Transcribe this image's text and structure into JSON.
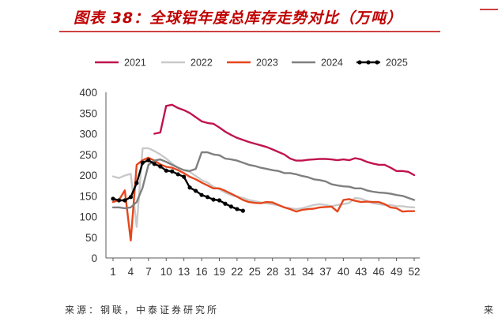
{
  "source": "来源：钢联，中泰证券研究所",
  "adjacent_panel_fragment": "来",
  "colors": {
    "title": "#C00000",
    "rule": "#C00000",
    "axis": "#595959"
  },
  "chart_data": {
    "type": "line",
    "title": "图表 38：全球铝年度总库存走势对比（万吨）",
    "xlabel": "",
    "ylabel": "",
    "xlim": [
      1,
      52
    ],
    "ylim": [
      0,
      400
    ],
    "xticks": [
      1,
      4,
      7,
      10,
      13,
      16,
      19,
      22,
      25,
      28,
      31,
      34,
      37,
      40,
      43,
      46,
      49,
      52
    ],
    "yticks": [
      0,
      50,
      100,
      150,
      200,
      250,
      300,
      350,
      400
    ],
    "grid": false,
    "legend": "top",
    "x": [
      1,
      2,
      3,
      4,
      5,
      6,
      7,
      8,
      9,
      10,
      11,
      12,
      13,
      14,
      15,
      16,
      17,
      18,
      19,
      20,
      21,
      22,
      23,
      24,
      25,
      26,
      27,
      28,
      29,
      30,
      31,
      32,
      33,
      34,
      35,
      36,
      37,
      38,
      39,
      40,
      41,
      42,
      43,
      44,
      45,
      46,
      47,
      48,
      49,
      50,
      51,
      52
    ],
    "series": [
      {
        "name": "2021",
        "color": "#C0134E",
        "markers": false,
        "values": [
          null,
          null,
          null,
          null,
          null,
          null,
          null,
          300,
          303,
          367,
          370,
          362,
          357,
          350,
          340,
          330,
          326,
          324,
          315,
          305,
          297,
          290,
          285,
          280,
          276,
          272,
          268,
          262,
          256,
          250,
          240,
          235,
          235,
          237,
          238,
          239,
          239,
          238,
          236,
          238,
          236,
          241,
          238,
          232,
          228,
          225,
          225,
          218,
          210,
          210,
          208,
          200
        ]
      },
      {
        "name": "2022",
        "color": "#C9C9C9",
        "markers": false,
        "values": [
          197,
          193,
          199,
          203,
          75,
          265,
          265,
          258,
          250,
          240,
          228,
          218,
          212,
          208,
          198,
          188,
          182,
          172,
          166,
          158,
          152,
          148,
          145,
          140,
          137,
          134,
          132,
          130,
          127,
          122,
          120,
          118,
          120,
          124,
          128,
          130,
          128,
          125,
          128,
          130,
          133,
          145,
          143,
          138,
          132,
          130,
          128,
          128,
          125,
          125,
          123,
          122
        ]
      },
      {
        "name": "2023",
        "color": "#E5461C",
        "markers": false,
        "values": [
          135,
          140,
          163,
          42,
          225,
          236,
          242,
          235,
          226,
          220,
          218,
          212,
          205,
          196,
          190,
          182,
          175,
          168,
          168,
          162,
          155,
          148,
          140,
          135,
          133,
          132,
          135,
          134,
          128,
          122,
          118,
          112,
          116,
          118,
          119,
          122,
          123,
          124,
          112,
          140,
          142,
          138,
          135,
          136,
          135,
          135,
          130,
          122,
          120,
          112,
          113,
          113
        ]
      },
      {
        "name": "2024",
        "color": "#7F7F7F",
        "markers": false,
        "values": [
          122,
          122,
          120,
          122,
          135,
          170,
          225,
          235,
          238,
          232,
          225,
          218,
          212,
          210,
          215,
          255,
          255,
          250,
          248,
          240,
          238,
          235,
          230,
          225,
          222,
          218,
          215,
          212,
          210,
          205,
          205,
          202,
          198,
          195,
          190,
          188,
          185,
          178,
          175,
          173,
          172,
          168,
          168,
          163,
          160,
          158,
          157,
          155,
          152,
          150,
          145,
          140
        ]
      },
      {
        "name": "2025",
        "color": "#000000",
        "markers": true,
        "values": [
          143,
          139,
          139,
          147,
          181,
          230,
          236,
          227,
          221,
          211,
          209,
          202,
          196,
          170,
          162,
          152,
          147,
          141,
          139,
          131,
          124,
          118,
          114,
          null,
          null,
          null,
          null,
          null,
          null,
          null,
          null,
          null,
          null,
          null,
          null,
          null,
          null,
          null,
          null,
          null,
          null,
          null,
          null,
          null,
          null,
          null,
          null,
          null,
          null,
          null,
          null,
          null
        ]
      }
    ]
  }
}
